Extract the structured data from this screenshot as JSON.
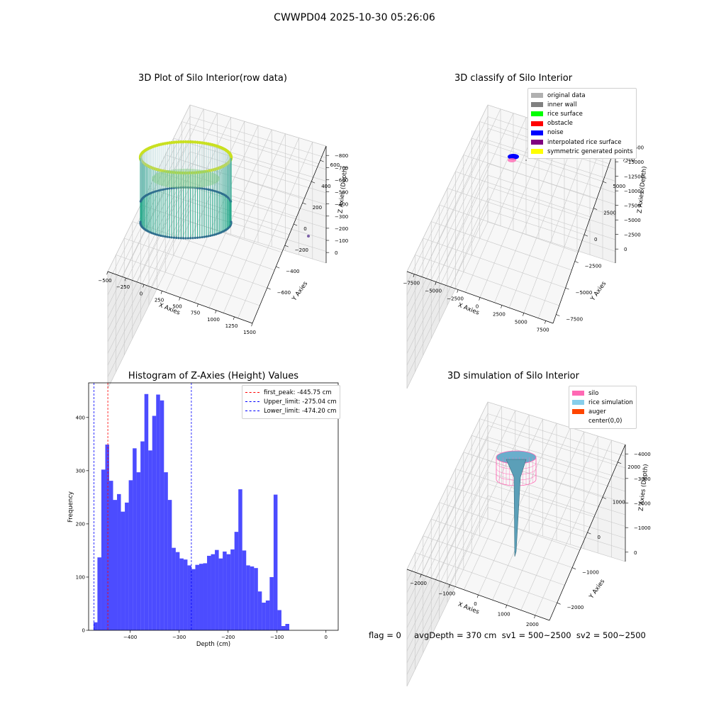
{
  "figure_title": "CWWPD04 2025-10-30 05:26:06",
  "status_line": "flag = 0     avgDepth = 370 cm  sv1 = 500~2500  sv2 = 500~2500",
  "colors": {
    "original": "#b0b0b0",
    "inner_wall": "#808080",
    "rice_surface": "#00ff00",
    "obstacle": "#ff0000",
    "noise": "#0000ff",
    "interpolated": "#800080",
    "symmetric": "#ffff00",
    "silo": "#ff69b4",
    "rice_sim": "#87ceeb",
    "auger": "#ff4500",
    "hist_bar": "#0000ff",
    "peak_line": "#ff0000",
    "limit_line": "#0000ff"
  },
  "chart_data": [
    {
      "type": "scatter",
      "title": "3D Plot of Silo Interior(row data)",
      "xlabel": "X Axies",
      "ylabel": "Y Axies",
      "zlabel": "Z Axies (Depth)",
      "x_ticks": [
        "−500",
        "−250",
        "0",
        "250",
        "500",
        "750",
        "1000",
        "1250",
        "1500"
      ],
      "y_ticks": [
        "−600",
        "−400",
        "−200",
        "0",
        "200",
        "400",
        "600"
      ],
      "z_ticks": [
        "0",
        "−100",
        "−200",
        "−300",
        "−400",
        "−500",
        "−600",
        "−700",
        "−800"
      ],
      "grid": true
    },
    {
      "type": "scatter",
      "title": "3D classify of Silo Interior",
      "xlabel": "X Axies",
      "ylabel": "Y Axies",
      "zlabel": "Z Axies (Depth)",
      "x_ticks": [
        "−7500",
        "−5000",
        "−2500",
        "0",
        "2500",
        "5000",
        "7500"
      ],
      "y_ticks": [
        "−7500",
        "−5000",
        "−2500",
        "0",
        "2500",
        "5000",
        "7500"
      ],
      "z_ticks": [
        "0",
        "−2500",
        "−5000",
        "−7500",
        "−10000",
        "−12500",
        "−15000",
        "−17500"
      ],
      "legend": [
        "original data",
        "inner wall",
        "rice surface",
        "obstacle",
        "noise",
        "interpolated rice surface",
        "symmetric generated points"
      ],
      "legend_position": "top-right",
      "grid": true
    },
    {
      "type": "bar",
      "title": "Histogram of Z-Axies (Height) Values",
      "xlabel": "Depth (cm)",
      "ylabel": "Frequency",
      "xlim": [
        -485,
        25
      ],
      "ylim": [
        0,
        465
      ],
      "x_ticks": [
        -400,
        -300,
        -200,
        -100,
        0
      ],
      "x_tick_labels": [
        "−400",
        "−300",
        "−200",
        "−100",
        "0"
      ],
      "y_ticks": [
        0,
        100,
        200,
        300,
        400
      ],
      "bin_start": -475,
      "bin_width": 8,
      "values": [
        15,
        137,
        302,
        349,
        281,
        245,
        256,
        223,
        240,
        282,
        342,
        297,
        355,
        444,
        338,
        403,
        443,
        432,
        297,
        245,
        155,
        147,
        135,
        133,
        122,
        115,
        123,
        125,
        126,
        140,
        143,
        151,
        135,
        148,
        143,
        152,
        185,
        265,
        150,
        122,
        120,
        117,
        73,
        52,
        56,
        100,
        255,
        38,
        8,
        12
      ],
      "reference_lines": [
        {
          "label": "first_peak: -445.75 cm",
          "x": -445.75,
          "kind": "peak"
        },
        {
          "label": "Upper_limit: -275.04 cm",
          "x": -275.04,
          "kind": "limit"
        },
        {
          "label": "Lower_limit: -474.20 cm",
          "x": -474.2,
          "kind": "limit"
        }
      ],
      "legend_position": "top-right"
    },
    {
      "type": "surface",
      "title": "3D simulation of Silo Interior",
      "xlabel": "X Axies",
      "ylabel": "Y Axies",
      "zlabel": "Z Axies (Depth)",
      "x_ticks": [
        "−2000",
        "−1000",
        "0",
        "1000",
        "2000"
      ],
      "y_ticks": [
        "−2000",
        "−1000",
        "0",
        "1000",
        "2000"
      ],
      "z_ticks": [
        "0",
        "−1000",
        "−2000",
        "−3000",
        "−4000"
      ],
      "legend": [
        "silo",
        "rice simulation",
        "auger",
        "center(0,0)"
      ],
      "legend_position": "top-right",
      "grid": true
    }
  ]
}
